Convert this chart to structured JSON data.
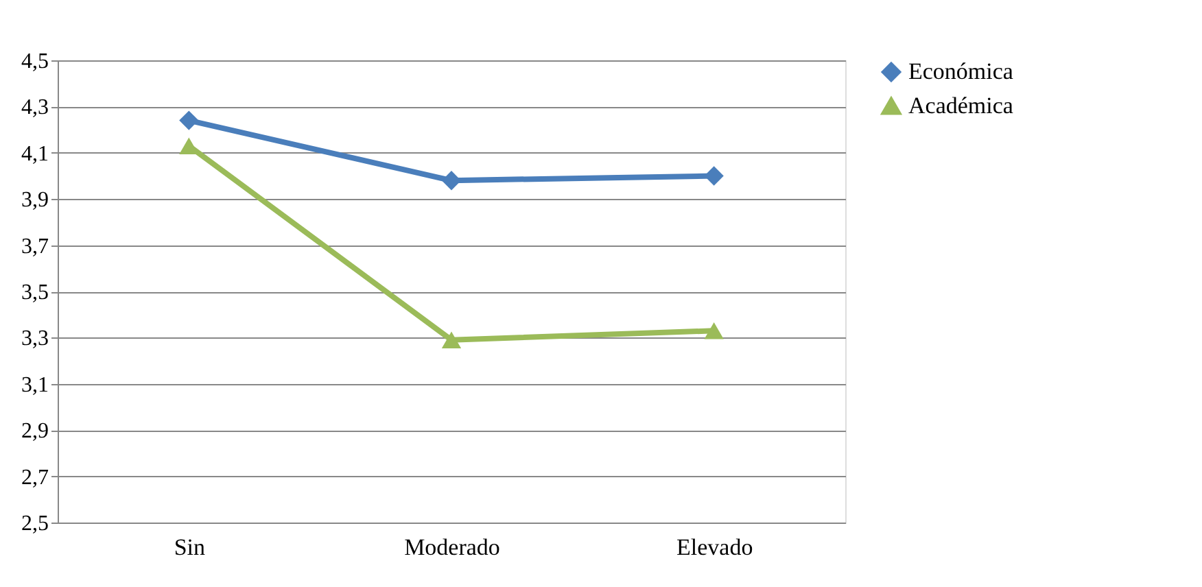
{
  "chart_data": {
    "type": "line",
    "categories": [
      "Sin",
      "Moderado",
      "Elevado"
    ],
    "series": [
      {
        "name": "Económica",
        "color": "#4a7ebb",
        "marker": "diamond",
        "values": [
          4.24,
          3.98,
          4.0
        ]
      },
      {
        "name": "Académica",
        "color": "#9bbb59",
        "marker": "triangle",
        "values": [
          4.13,
          3.29,
          3.33
        ]
      }
    ],
    "ylim": [
      2.5,
      4.5
    ],
    "yticks": [
      {
        "value": 2.5,
        "label": "2,5"
      },
      {
        "value": 2.7,
        "label": "2,7"
      },
      {
        "value": 2.9,
        "label": "2,9"
      },
      {
        "value": 3.1,
        "label": "3,1"
      },
      {
        "value": 3.3,
        "label": "3,3"
      },
      {
        "value": 3.5,
        "label": "3,5"
      },
      {
        "value": 3.7,
        "label": "3,7"
      },
      {
        "value": 3.9,
        "label": "3,9"
      },
      {
        "value": 4.1,
        "label": "4,1"
      },
      {
        "value": 4.3,
        "label": "4,3"
      },
      {
        "value": 4.5,
        "label": "4,5"
      }
    ],
    "grid": "y",
    "legend": "right",
    "line_style": "solid"
  }
}
